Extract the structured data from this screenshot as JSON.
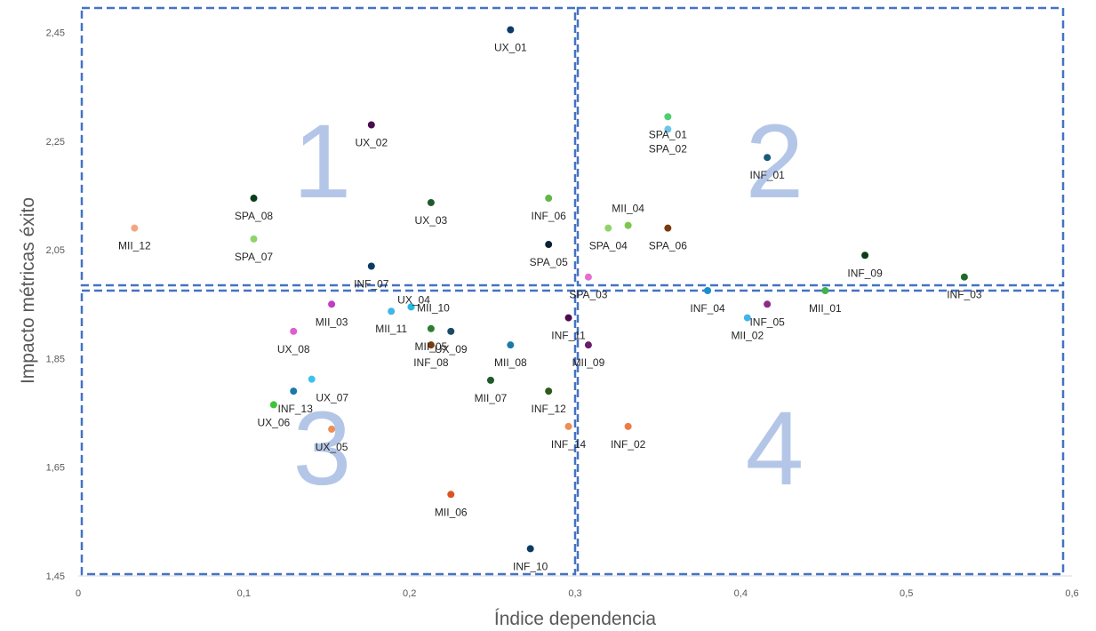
{
  "chart_data": {
    "type": "scatter",
    "title": "",
    "xlabel": "Índice dependencia",
    "ylabel": "Impacto métricas éxito",
    "xlim": [
      0,
      0.6
    ],
    "ylim": [
      1.45,
      2.5
    ],
    "x_ticks": [
      "0",
      "0,1",
      "0,2",
      "0,3",
      "0,4",
      "0,5",
      "0,6"
    ],
    "y_ticks": [
      "1,45",
      "1,65",
      "1,85",
      "2,05",
      "2,25",
      "2,45"
    ],
    "x_tick_values": [
      0,
      0.1,
      0.2,
      0.3,
      0.4,
      0.5,
      0.6
    ],
    "y_tick_values": [
      1.45,
      1.65,
      1.85,
      2.05,
      2.25,
      2.45
    ],
    "grid": false,
    "legend": "none",
    "quadrant_divider": {
      "x": 0.3,
      "y": 1.98
    },
    "quadrant_labels": [
      "1",
      "2",
      "3",
      "4"
    ],
    "points": [
      {
        "label": "UX_01",
        "x": 0.261,
        "y": 2.455,
        "color": "#0d3b66"
      },
      {
        "label": "UX_02",
        "x": 0.177,
        "y": 2.28,
        "color": "#4a0d4f"
      },
      {
        "label": "SPA_08",
        "x": 0.106,
        "y": 2.145,
        "color": "#0b3d1a"
      },
      {
        "label": "UX_03",
        "x": 0.213,
        "y": 2.137,
        "color": "#1e5a2a"
      },
      {
        "label": "INF_06",
        "x": 0.284,
        "y": 2.145,
        "color": "#62b64a"
      },
      {
        "label": "MII_12",
        "x": 0.034,
        "y": 2.09,
        "color": "#f4a582"
      },
      {
        "label": "SPA_07",
        "x": 0.106,
        "y": 2.07,
        "color": "#8fd36a"
      },
      {
        "label": "SPA_05",
        "x": 0.284,
        "y": 2.06,
        "color": "#0b2236"
      },
      {
        "label": "INF_07",
        "x": 0.177,
        "y": 2.02,
        "color": "#0d3b66"
      },
      {
        "label": "SPA_01",
        "x": 0.356,
        "y": 2.295,
        "color": "#4ccf6e"
      },
      {
        "label": "SPA_02",
        "x": 0.356,
        "y": 2.272,
        "color": "#6cc5e8"
      },
      {
        "label": "INF_01",
        "x": 0.416,
        "y": 2.22,
        "color": "#1a5a7a"
      },
      {
        "label": "MII_04",
        "x": 0.332,
        "y": 2.095,
        "color": "#7cc84a"
      },
      {
        "label": "SPA_04",
        "x": 0.32,
        "y": 2.09,
        "color": "#8fd36a"
      },
      {
        "label": "SPA_06",
        "x": 0.356,
        "y": 2.09,
        "color": "#7a3b0d"
      },
      {
        "label": "INF_09",
        "x": 0.475,
        "y": 2.04,
        "color": "#0b3d1a"
      },
      {
        "label": "SPA_03",
        "x": 0.308,
        "y": 2.0,
        "color": "#e36fd0"
      },
      {
        "label": "INF_03",
        "x": 0.535,
        "y": 2.0,
        "color": "#1e6a2a"
      },
      {
        "label": "UX_04",
        "x": 0.201,
        "y": 1.945,
        "color": "#2ab7e0"
      },
      {
        "label": "MII_10",
        "x": 0.201,
        "y": 1.945,
        "color": "#2ab7e0"
      },
      {
        "label": "MII_03",
        "x": 0.153,
        "y": 1.95,
        "color": "#c43bc7"
      },
      {
        "label": "MII_11",
        "x": 0.189,
        "y": 1.937,
        "color": "#3fb6ea"
      },
      {
        "label": "INF_11",
        "x": 0.296,
        "y": 1.925,
        "color": "#4a0d4f"
      },
      {
        "label": "UX_08",
        "x": 0.13,
        "y": 1.9,
        "color": "#e15ccf"
      },
      {
        "label": "MII_05",
        "x": 0.213,
        "y": 1.905,
        "color": "#2e7d32"
      },
      {
        "label": "INF_08",
        "x": 0.213,
        "y": 1.875,
        "color": "#7a3b0d"
      },
      {
        "label": "MII_08",
        "x": 0.261,
        "y": 1.875,
        "color": "#1a7aa8"
      },
      {
        "label": "MII_09",
        "x": 0.308,
        "y": 1.875,
        "color": "#6a1b6a"
      },
      {
        "label": "INF_04",
        "x": 0.38,
        "y": 1.975,
        "color": "#1a8fd0"
      },
      {
        "label": "INF_05",
        "x": 0.416,
        "y": 1.95,
        "color": "#8a2b8a"
      },
      {
        "label": "MII_02",
        "x": 0.404,
        "y": 1.925,
        "color": "#3fb6ea"
      },
      {
        "label": "MII_01",
        "x": 0.451,
        "y": 1.975,
        "color": "#3cb44b"
      },
      {
        "label": "UX_07",
        "x": 0.141,
        "y": 1.812,
        "color": "#3fc1ee"
      },
      {
        "label": "INF_13",
        "x": 0.13,
        "y": 1.79,
        "color": "#1a7aa8"
      },
      {
        "label": "UX_06",
        "x": 0.118,
        "y": 1.765,
        "color": "#3cc43c"
      },
      {
        "label": "UX_05",
        "x": 0.153,
        "y": 1.72,
        "color": "#f08c55"
      },
      {
        "label": "MII_07",
        "x": 0.249,
        "y": 1.81,
        "color": "#1e5a2a"
      },
      {
        "label": "INF_12",
        "x": 0.284,
        "y": 1.79,
        "color": "#2e5a1a"
      },
      {
        "label": "INF_14",
        "x": 0.296,
        "y": 1.725,
        "color": "#f08c55"
      },
      {
        "label": "INF_02",
        "x": 0.332,
        "y": 1.725,
        "color": "#ef7a45"
      },
      {
        "label": "MII_06",
        "x": 0.225,
        "y": 1.6,
        "color": "#d9541e"
      },
      {
        "label": "INF_10",
        "x": 0.273,
        "y": 1.5,
        "color": "#0d3b66"
      },
      {
        "label": "UX_09",
        "x": 0.225,
        "y": 1.9,
        "color": "#1a4a66"
      }
    ]
  }
}
